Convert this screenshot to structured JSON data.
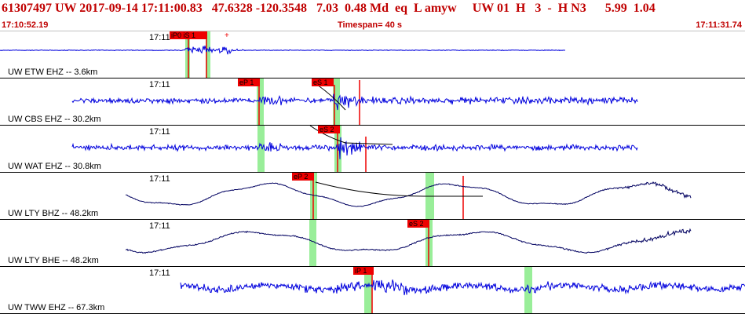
{
  "header": {
    "title": "61307497 UW 2017-09-14 17:11:00.83   47.6328 -120.3548   7.03  0.48 Md  eq  L amyw     UW 01  H   3  -  H N3      5.99  1.04",
    "start_time": "17:10:52.19",
    "timespan": "Timespan=  40 s",
    "end_time": "17:11:31.74"
  },
  "colors": {
    "trace_blue": "#0000dd",
    "trace_navy": "#000060",
    "pick_red": "#ee0000",
    "window_green": "#99ee99",
    "header_red": "#c00000"
  },
  "panels": [
    {
      "name": "etw",
      "label": "UW ETW EHZ -- 3.6km",
      "tick": "17:11",
      "trace": "blue",
      "picks": [
        {
          "label": "iP0 iS 1"
        }
      ]
    },
    {
      "name": "cbs",
      "label": "UW CBS EHZ -- 30.2km",
      "tick": "17:11",
      "trace": "blue",
      "picks": [
        {
          "label": "eP 1"
        },
        {
          "label": "eS 1"
        }
      ]
    },
    {
      "name": "wat",
      "label": "UW WAT EHZ -- 30.8km",
      "tick": "17:11",
      "trace": "blue",
      "picks": [
        {
          "label": "eS 2"
        }
      ]
    },
    {
      "name": "lty-bhz",
      "label": "UW LTY BHZ -- 48.2km",
      "tick": "17:11",
      "trace": "navy",
      "picks": [
        {
          "label": "eP 2"
        }
      ]
    },
    {
      "name": "lty-bhe",
      "label": "UW LTY BHE -- 48.2km",
      "tick": "17:11",
      "trace": "navy",
      "picks": [
        {
          "label": "eS 2"
        }
      ]
    },
    {
      "name": "tww",
      "label": "UW TWW EHZ -- 67.3km",
      "tick": "17:11",
      "trace": "blue",
      "picks": [
        {
          "label": "iP 1"
        }
      ]
    }
  ]
}
